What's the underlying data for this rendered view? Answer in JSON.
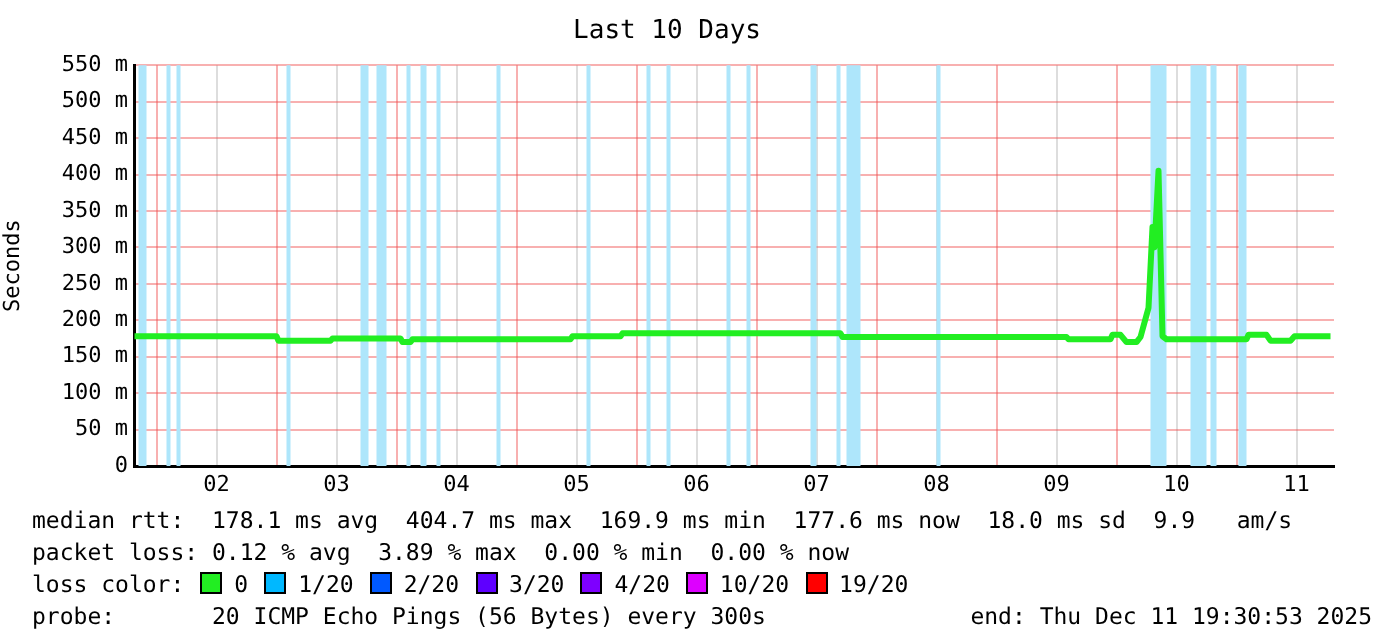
{
  "chart_data": {
    "type": "line",
    "title": "Last 10 Days",
    "ylabel": "Seconds",
    "legend_title": "loss color:",
    "legend": "bottom",
    "grid": true,
    "marker": "none",
    "line_style": "solid",
    "xlim": [
      "2025-12-01T19:30",
      "2025-12-11T19:30"
    ],
    "xticks": [
      {
        "value": "2025-12-02T00:00",
        "label": null
      },
      {
        "value": "2025-12-02T12:00",
        "label": "02"
      },
      {
        "value": "2025-12-03T00:00",
        "label": null
      },
      {
        "value": "2025-12-03T12:00",
        "label": "03"
      },
      {
        "value": "2025-12-04T00:00",
        "label": null
      },
      {
        "value": "2025-12-04T12:00",
        "label": "04"
      },
      {
        "value": "2025-12-05T00:00",
        "label": null
      },
      {
        "value": "2025-12-05T12:00",
        "label": "05"
      },
      {
        "value": "2025-12-06T00:00",
        "label": null
      },
      {
        "value": "2025-12-06T12:00",
        "label": "06"
      },
      {
        "value": "2025-12-07T00:00",
        "label": null
      },
      {
        "value": "2025-12-07T12:00",
        "label": "07"
      },
      {
        "value": "2025-12-08T00:00",
        "label": null
      },
      {
        "value": "2025-12-08T12:00",
        "label": "08"
      },
      {
        "value": "2025-12-09T00:00",
        "label": null
      },
      {
        "value": "2025-12-09T12:00",
        "label": "09"
      },
      {
        "value": "2025-12-10T00:00",
        "label": null
      },
      {
        "value": "2025-12-10T12:00",
        "label": "10"
      },
      {
        "value": "2025-12-11T00:00",
        "label": null
      },
      {
        "value": "2025-12-11T12:00",
        "label": "11"
      }
    ],
    "ylim": [
      0,
      550
    ],
    "yticks": [
      {
        "value": 0,
        "label": "0"
      },
      {
        "value": 50,
        "label": "50 m"
      },
      {
        "value": 100,
        "label": "100 m"
      },
      {
        "value": 150,
        "label": "150 m"
      },
      {
        "value": 200,
        "label": "200 m"
      },
      {
        "value": 250,
        "label": "250 m"
      },
      {
        "value": 300,
        "label": "300 m"
      },
      {
        "value": 350,
        "label": "350 m"
      },
      {
        "value": 400,
        "label": "400 m"
      },
      {
        "value": 450,
        "label": "450 m"
      },
      {
        "value": 500,
        "label": "500 m"
      },
      {
        "value": 550,
        "label": "550 m"
      }
    ],
    "x": [
      "2025-12-01T19:36",
      "2025-12-03T00:00",
      "2025-12-03T00:24",
      "2025-12-03T10:48",
      "2025-12-03T11:12",
      "2025-12-04T00:48",
      "2025-12-04T01:12",
      "2025-12-04T02:48",
      "2025-12-04T03:12",
      "2025-12-05T10:48",
      "2025-12-05T11:12",
      "2025-12-05T20:48",
      "2025-12-05T21:12",
      "2025-12-07T16:48",
      "2025-12-07T17:12",
      "2025-12-09T14:00",
      "2025-12-09T14:24",
      "2025-12-09T22:48",
      "2025-12-09T23:12",
      "2025-12-10T00:48",
      "2025-12-10T02:00",
      "2025-12-10T04:00",
      "2025-12-10T04:48",
      "2025-12-10T06:24",
      "2025-12-10T07:12",
      "2025-12-10T07:36",
      "2025-12-10T08:24",
      "2025-12-10T09:12",
      "2025-12-10T10:00",
      "2025-12-11T02:00",
      "2025-12-11T02:24",
      "2025-12-11T06:00",
      "2025-12-11T06:48",
      "2025-12-11T10:48",
      "2025-12-11T11:36",
      "2025-12-11T18:48"
    ],
    "series": [
      {
        "name": "0",
        "color": "#22ee22",
        "values": [
          178,
          178,
          172,
          172,
          175,
          175,
          170,
          170,
          174,
          174,
          178,
          178,
          182,
          182,
          177,
          177,
          174,
          174,
          180,
          180,
          170,
          170,
          177,
          217,
          328,
          300,
          405,
          178,
          174,
          174,
          180,
          180,
          172,
          172,
          178,
          178
        ]
      },
      {
        "name": "1/20",
        "color": "#00b8ff",
        "values": [
          null,
          null,
          null,
          null,
          null,
          null,
          null,
          null,
          null,
          null,
          null,
          null,
          null,
          null,
          null,
          null,
          null,
          null,
          null,
          null,
          null,
          null,
          null,
          null,
          null,
          null,
          null,
          null,
          null,
          null,
          null,
          null,
          null,
          null,
          null,
          null
        ]
      },
      {
        "name": "2/20",
        "color": "#0059ff",
        "values": [
          null,
          null,
          null,
          null,
          null,
          null,
          null,
          null,
          null,
          null,
          null,
          null,
          null,
          null,
          null,
          null,
          null,
          null,
          null,
          null,
          null,
          null,
          null,
          null,
          null,
          null,
          null,
          null,
          null,
          null,
          null,
          null,
          null,
          null,
          null,
          null
        ]
      },
      {
        "name": "3/20",
        "color": "#5e00ff",
        "values": [
          null,
          null,
          null,
          null,
          null,
          null,
          null,
          null,
          null,
          null,
          null,
          null,
          null,
          null,
          null,
          null,
          null,
          null,
          null,
          null,
          null,
          null,
          null,
          null,
          null,
          null,
          null,
          null,
          null,
          null,
          null,
          null,
          null,
          null,
          null,
          null
        ]
      },
      {
        "name": "4/20",
        "color": "#7e00ff",
        "values": [
          null,
          null,
          null,
          null,
          null,
          null,
          null,
          null,
          null,
          null,
          null,
          null,
          null,
          null,
          null,
          null,
          null,
          null,
          null,
          null,
          null,
          null,
          null,
          null,
          null,
          null,
          null,
          null,
          null,
          null,
          null,
          null,
          null,
          null,
          null,
          null
        ]
      },
      {
        "name": "10/20",
        "color": "#dd00ff",
        "values": [
          null,
          null,
          null,
          null,
          null,
          null,
          null,
          null,
          null,
          null,
          null,
          null,
          null,
          null,
          null,
          null,
          null,
          null,
          null,
          null,
          null,
          null,
          null,
          null,
          null,
          null,
          null,
          null,
          null,
          null,
          null,
          null,
          null,
          null,
          null,
          null
        ]
      },
      {
        "name": "19/20",
        "color": "#ff0000",
        "values": [
          null,
          null,
          null,
          null,
          null,
          null,
          null,
          null,
          null,
          null,
          null,
          null,
          null,
          null,
          null,
          null,
          null,
          null,
          null,
          null,
          null,
          null,
          null,
          null,
          null,
          null,
          null,
          null,
          null,
          null,
          null,
          null,
          null,
          null,
          null,
          null
        ]
      }
    ],
    "bands": [
      {
        "axis": "x",
        "from": "2025-12-01T20:24",
        "to": "2025-12-01T22:00",
        "color": "#aee6fb"
      },
      {
        "axis": "x",
        "from": "2025-12-02T02:00",
        "to": "2025-12-02T02:48",
        "color": "#aee6fb"
      },
      {
        "axis": "x",
        "from": "2025-12-02T04:00",
        "to": "2025-12-02T04:48",
        "color": "#aee6fb"
      },
      {
        "axis": "x",
        "from": "2025-12-03T02:00",
        "to": "2025-12-03T02:48",
        "color": "#aee6fb"
      },
      {
        "axis": "x",
        "from": "2025-12-03T16:48",
        "to": "2025-12-03T18:24",
        "color": "#aee6fb"
      },
      {
        "axis": "x",
        "from": "2025-12-03T20:00",
        "to": "2025-12-03T22:00",
        "color": "#aee6fb"
      },
      {
        "axis": "x",
        "from": "2025-12-04T02:00",
        "to": "2025-12-04T02:48",
        "color": "#aee6fb"
      },
      {
        "axis": "x",
        "from": "2025-12-04T04:48",
        "to": "2025-12-04T06:00",
        "color": "#aee6fb"
      },
      {
        "axis": "x",
        "from": "2025-12-04T08:00",
        "to": "2025-12-04T08:48",
        "color": "#aee6fb"
      },
      {
        "axis": "x",
        "from": "2025-12-04T20:00",
        "to": "2025-12-04T20:48",
        "color": "#aee6fb"
      },
      {
        "axis": "x",
        "from": "2025-12-05T14:00",
        "to": "2025-12-05T14:48",
        "color": "#aee6fb"
      },
      {
        "axis": "x",
        "from": "2025-12-06T02:00",
        "to": "2025-12-06T02:48",
        "color": "#aee6fb"
      },
      {
        "axis": "x",
        "from": "2025-12-06T06:00",
        "to": "2025-12-06T06:48",
        "color": "#aee6fb"
      },
      {
        "axis": "x",
        "from": "2025-12-06T18:00",
        "to": "2025-12-06T18:48",
        "color": "#aee6fb"
      },
      {
        "axis": "x",
        "from": "2025-12-06T22:00",
        "to": "2025-12-06T22:48",
        "color": "#aee6fb"
      },
      {
        "axis": "x",
        "from": "2025-12-07T10:48",
        "to": "2025-12-07T12:00",
        "color": "#aee6fb"
      },
      {
        "axis": "x",
        "from": "2025-12-07T16:00",
        "to": "2025-12-07T16:48",
        "color": "#aee6fb"
      },
      {
        "axis": "x",
        "from": "2025-12-07T18:00",
        "to": "2025-12-07T20:48",
        "color": "#aee6fb"
      },
      {
        "axis": "x",
        "from": "2025-12-08T12:00",
        "to": "2025-12-08T12:48",
        "color": "#aee6fb"
      },
      {
        "axis": "x",
        "from": "2025-12-10T06:48",
        "to": "2025-12-10T10:00",
        "color": "#aee6fb"
      },
      {
        "axis": "x",
        "from": "2025-12-10T14:48",
        "to": "2025-12-10T18:00",
        "color": "#aee6fb"
      },
      {
        "axis": "x",
        "from": "2025-12-10T18:48",
        "to": "2025-12-10T20:00",
        "color": "#aee6fb"
      },
      {
        "axis": "x",
        "from": "2025-12-11T00:24",
        "to": "2025-12-11T02:00",
        "color": "#aee6fb"
      }
    ],
    "annotations": [
      "median rtt:  178.1 ms avg  404.7 ms max  169.9 ms min  177.6 ms now  18.0 ms sd  9.9   am/s",
      "packet loss: 0.12 % avg  3.89 % max  0.00 % min  0.00 % now",
      "probe:       20 ICMP Echo Pings (56 Bytes) every 300s",
      "end: Thu Dec 11 19:30:53 2025"
    ]
  }
}
